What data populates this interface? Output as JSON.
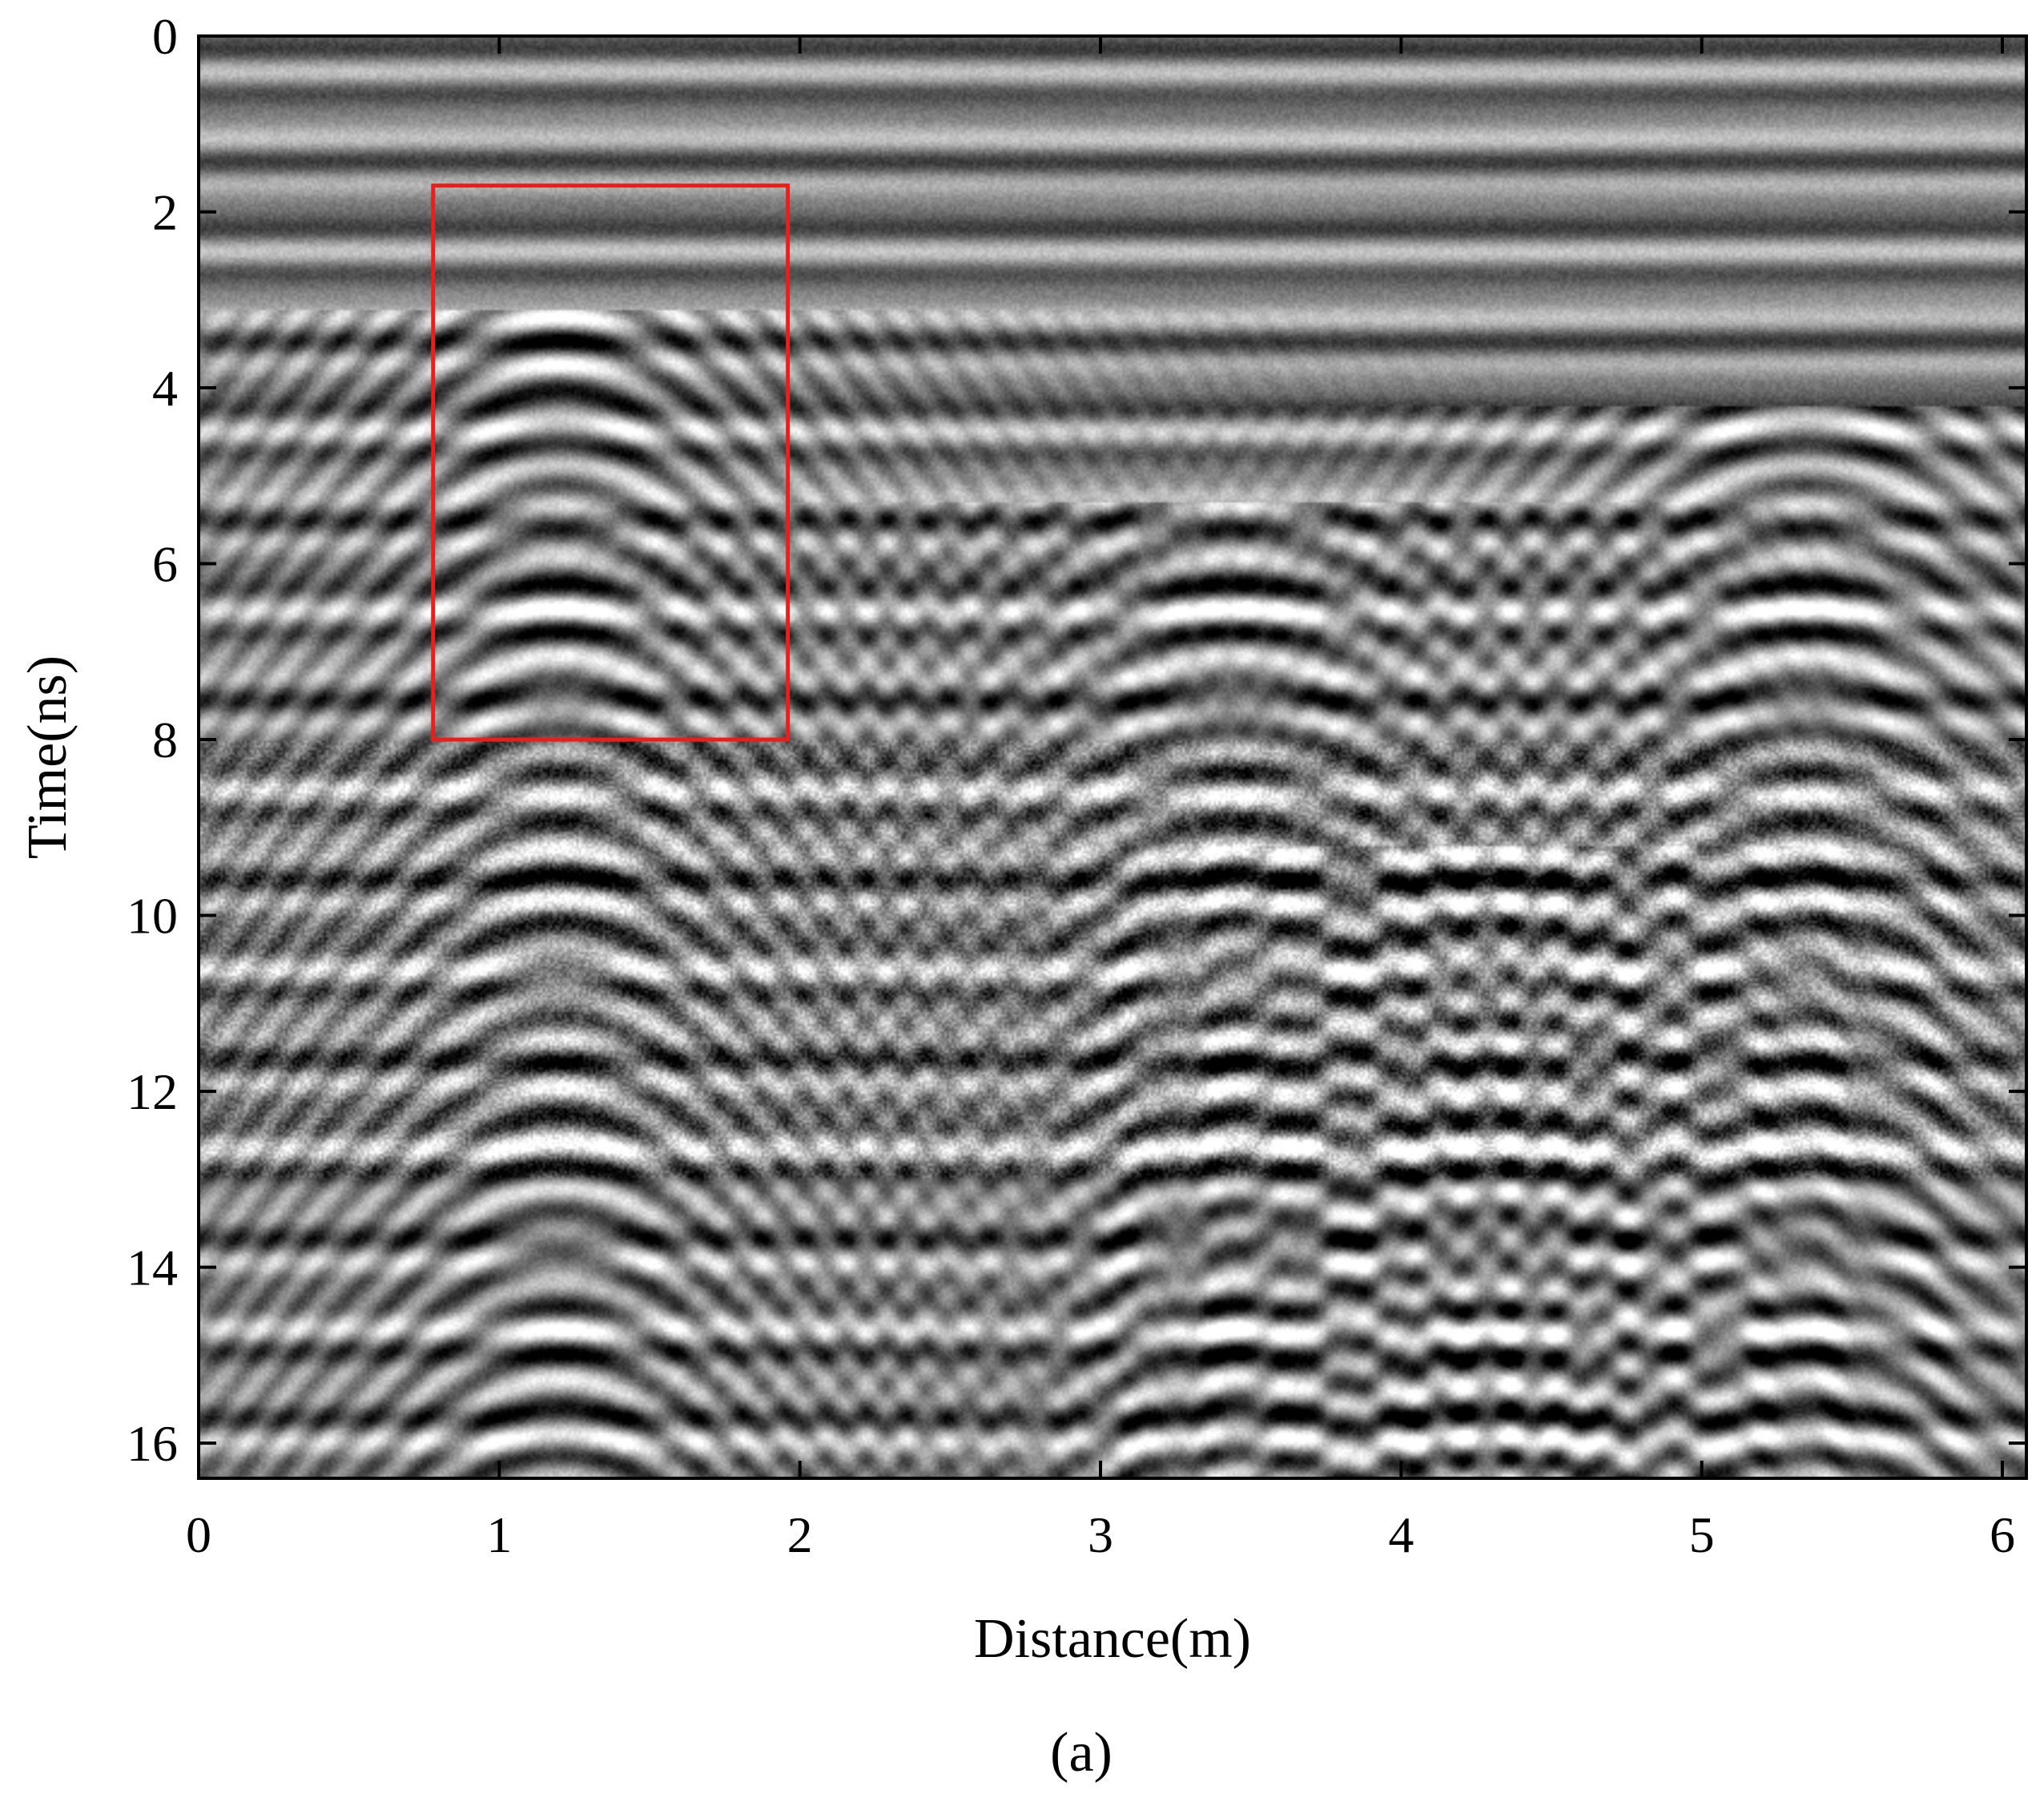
{
  "chart_data": {
    "type": "heatmap",
    "title": "",
    "colormap": "gray",
    "xlabel": "Distance(m)",
    "ylabel": "Time(ns)",
    "xlim": [
      0,
      6.08
    ],
    "ylim": [
      16.4,
      0
    ],
    "x_ticks": [
      0,
      1,
      2,
      3,
      4,
      5,
      6
    ],
    "y_ticks": [
      0,
      2,
      4,
      6,
      8,
      10,
      12,
      14,
      16
    ],
    "grid": false,
    "annotations": [
      {
        "type": "rectangle",
        "color": "#e8201c",
        "x": [
          0.78,
          1.96
        ],
        "y": [
          1.7,
          8.0
        ]
      }
    ],
    "hyperbola_apexes": [
      {
        "x": 1.2,
        "y": 3.6
      },
      {
        "x": 3.45,
        "y": 5.8
      },
      {
        "x": 4.3,
        "y": 9.7
      },
      {
        "x": 5.35,
        "y": 4.7
      }
    ]
  },
  "caption": "(a)"
}
